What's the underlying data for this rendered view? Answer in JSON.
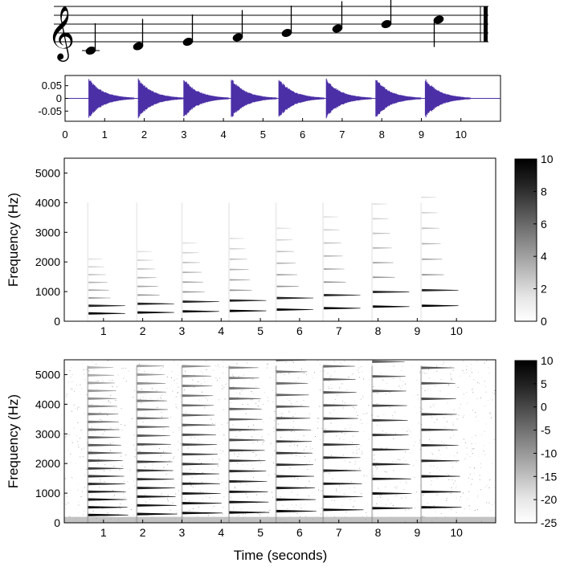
{
  "colors": {
    "waveform": "#4b2fa6",
    "axis": "#000000",
    "background": "#ffffff"
  },
  "chart_data": [
    {
      "type": "notation",
      "name": "musical staff",
      "clef": "treble",
      "notes": [
        "C4",
        "D4",
        "E4",
        "F4",
        "G4",
        "A4",
        "B4",
        "C5"
      ]
    },
    {
      "type": "line",
      "name": "waveform",
      "xlim": [
        0,
        11
      ],
      "ylim": [
        -0.09,
        0.09
      ],
      "xticks": [
        0,
        1,
        2,
        3,
        4,
        5,
        6,
        7,
        8,
        9,
        10
      ],
      "yticks": [
        0.05,
        0,
        -0.05
      ],
      "ytick_labels": [
        "0.05",
        "0",
        "-0.05"
      ],
      "note_onsets_s": [
        0.6,
        1.85,
        3.0,
        4.2,
        5.4,
        6.6,
        7.85,
        9.1
      ],
      "peak_amplitude": 0.08
    },
    {
      "type": "heatmap",
      "name": "linear magnitude spectrogram",
      "xlabel": "",
      "ylabel": "Frequency (Hz)",
      "xlim": [
        0,
        11
      ],
      "ylim": [
        0,
        5500
      ],
      "xticks": [
        1,
        2,
        3,
        4,
        5,
        6,
        7,
        8,
        9,
        10
      ],
      "yticks": [
        0,
        1000,
        2000,
        3000,
        4000,
        5000
      ],
      "colorbar": {
        "min": 0,
        "max": 10,
        "ticks": [
          0,
          2,
          4,
          6,
          8,
          10
        ]
      },
      "note_onsets_s": [
        0.6,
        1.85,
        3.0,
        4.2,
        5.4,
        6.6,
        7.85,
        9.1
      ],
      "fundamentals_hz": [
        262,
        294,
        330,
        349,
        392,
        440,
        494,
        523
      ]
    },
    {
      "type": "heatmap",
      "name": "log magnitude spectrogram",
      "xlabel": "Time (seconds)",
      "ylabel": "Frequency (Hz)",
      "xlim": [
        0,
        11
      ],
      "ylim": [
        0,
        5500
      ],
      "xticks": [
        1,
        2,
        3,
        4,
        5,
        6,
        7,
        8,
        9,
        10
      ],
      "yticks": [
        0,
        1000,
        2000,
        3000,
        4000,
        5000
      ],
      "colorbar": {
        "min": -25,
        "max": 10,
        "ticks": [
          10,
          5,
          0,
          -5,
          -10,
          -15,
          -20,
          -25
        ]
      },
      "note_onsets_s": [
        0.6,
        1.85,
        3.0,
        4.2,
        5.4,
        6.6,
        7.85,
        9.1
      ],
      "fundamentals_hz": [
        262,
        294,
        330,
        349,
        392,
        440,
        494,
        523
      ]
    }
  ]
}
